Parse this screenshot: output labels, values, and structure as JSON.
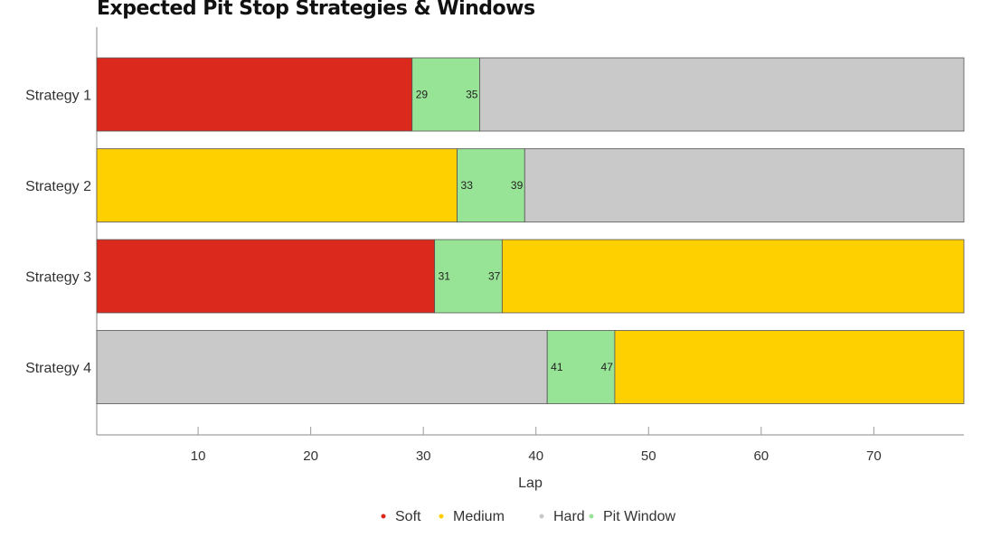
{
  "chart_data": {
    "type": "bar",
    "orientation": "horizontal-stacked",
    "title": "Expected Pit Stop Strategies & Windows",
    "xlabel": "Lap",
    "ylabel": "",
    "xlim": [
      1,
      78
    ],
    "xticks": [
      10,
      20,
      30,
      40,
      50,
      60,
      70
    ],
    "grid": false,
    "legend_position": "bottom",
    "categories": [
      "Strategy 1",
      "Strategy 2",
      "Strategy 3",
      "Strategy 4"
    ],
    "strategies": [
      {
        "name": "Strategy 1",
        "segments": [
          {
            "compound": "Soft",
            "start": 1,
            "end": 29
          },
          {
            "compound": "Pit Window",
            "start": 29,
            "end": 35,
            "labels": [
              "29",
              "35"
            ]
          },
          {
            "compound": "Hard",
            "start": 35,
            "end": 78
          }
        ]
      },
      {
        "name": "Strategy 2",
        "segments": [
          {
            "compound": "Medium",
            "start": 1,
            "end": 33
          },
          {
            "compound": "Pit Window",
            "start": 33,
            "end": 39,
            "labels": [
              "33",
              "39"
            ]
          },
          {
            "compound": "Hard",
            "start": 39,
            "end": 78
          }
        ]
      },
      {
        "name": "Strategy 3",
        "segments": [
          {
            "compound": "Soft",
            "start": 1,
            "end": 31
          },
          {
            "compound": "Pit Window",
            "start": 31,
            "end": 37,
            "labels": [
              "31",
              "37"
            ]
          },
          {
            "compound": "Medium",
            "start": 37,
            "end": 78
          }
        ]
      },
      {
        "name": "Strategy 4",
        "segments": [
          {
            "compound": "Hard",
            "start": 1,
            "end": 41
          },
          {
            "compound": "Pit Window",
            "start": 41,
            "end": 47,
            "labels": [
              "41",
              "47"
            ]
          },
          {
            "compound": "Medium",
            "start": 47,
            "end": 78
          }
        ]
      }
    ],
    "legend": [
      {
        "name": "Soft",
        "color": "#dc291e"
      },
      {
        "name": "Medium",
        "color": "#ffd000"
      },
      {
        "name": "Hard",
        "color": "#c9c9c9"
      },
      {
        "name": "Pit Window",
        "color": "#98e496"
      }
    ]
  }
}
